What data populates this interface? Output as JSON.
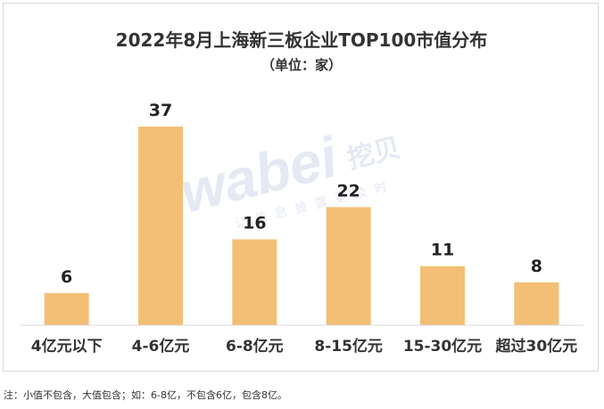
{
  "chart_data": {
    "type": "bar",
    "title": "2022年8月上海新三板企业TOP100市值分布",
    "subtitle": "（单位：家）",
    "categories": [
      "4亿元以下",
      "4-6亿元",
      "6-8亿元",
      "8-15亿元",
      "15-30亿元",
      "超过30亿元"
    ],
    "values": [
      6,
      37,
      16,
      22,
      11,
      8
    ],
    "ylim": [
      0,
      40
    ],
    "grid": false,
    "legend": "none",
    "bar_color": "#f2bf74"
  },
  "watermark": {
    "brand": "wabei",
    "brand_cn": "挖贝",
    "slogan": "让信息披露更及时"
  },
  "note": "注：小值不包含，大值包含；如：6-8亿，不包含6亿，包含8亿。"
}
